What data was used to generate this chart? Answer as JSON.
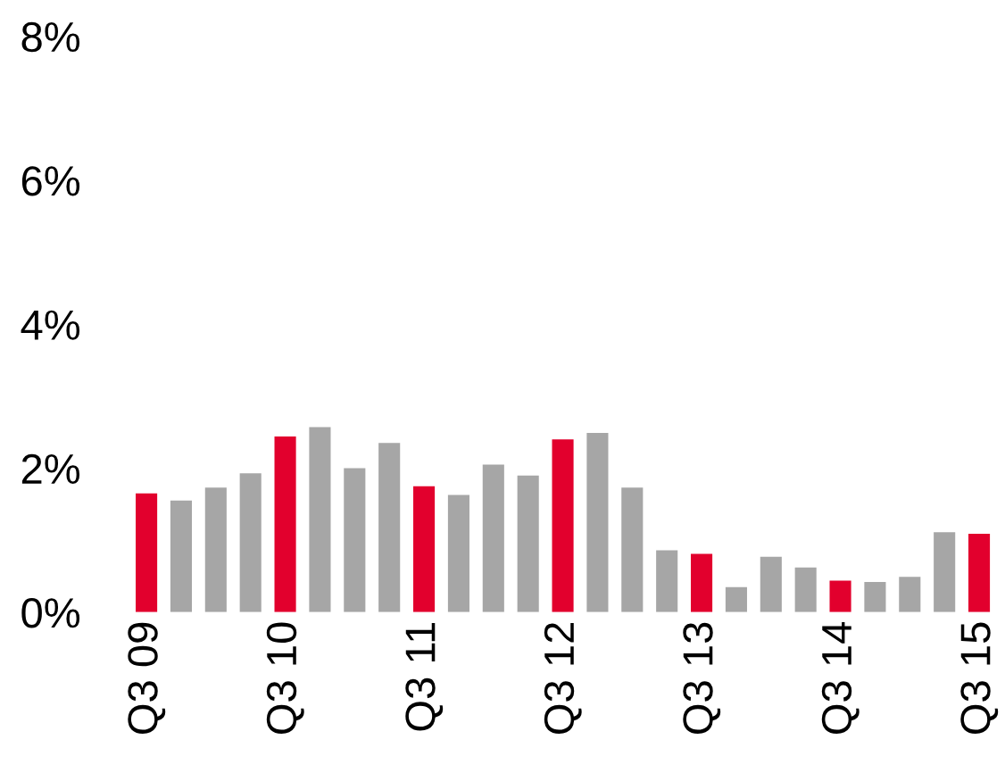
{
  "chart_data": {
    "type": "bar",
    "categories": [
      "Q3 09",
      null,
      null,
      null,
      "Q3 10",
      null,
      null,
      null,
      "Q3 11",
      null,
      null,
      null,
      "Q3 12",
      null,
      null,
      null,
      "Q3 13",
      null,
      null,
      null,
      "Q3 14",
      null,
      null,
      null,
      "Q3 15"
    ],
    "values": [
      1.65,
      1.55,
      1.73,
      1.93,
      2.44,
      2.57,
      2.0,
      2.35,
      1.75,
      1.63,
      2.05,
      1.9,
      2.4,
      2.49,
      1.73,
      0.86,
      0.81,
      0.35,
      0.77,
      0.62,
      0.44,
      0.42,
      0.49,
      1.11,
      1.09
    ],
    "colors": [
      "#e2002d",
      "#a6a6a6",
      "#a6a6a6",
      "#a6a6a6",
      "#e2002d",
      "#a6a6a6",
      "#a6a6a6",
      "#a6a6a6",
      "#e2002d",
      "#a6a6a6",
      "#a6a6a6",
      "#a6a6a6",
      "#e2002d",
      "#a6a6a6",
      "#a6a6a6",
      "#a6a6a6",
      "#e2002d",
      "#a6a6a6",
      "#a6a6a6",
      "#a6a6a6",
      "#e2002d",
      "#a6a6a6",
      "#a6a6a6",
      "#a6a6a6",
      "#e2002d"
    ],
    "ylim": [
      0,
      8
    ],
    "yticks": [
      {
        "value": 0,
        "label": "0%"
      },
      {
        "value": 2,
        "label": "2%"
      },
      {
        "value": 4,
        "label": "4%"
      },
      {
        "value": 6,
        "label": "6%"
      },
      {
        "value": 8,
        "label": "8%"
      }
    ],
    "grid": false,
    "legend": false
  }
}
